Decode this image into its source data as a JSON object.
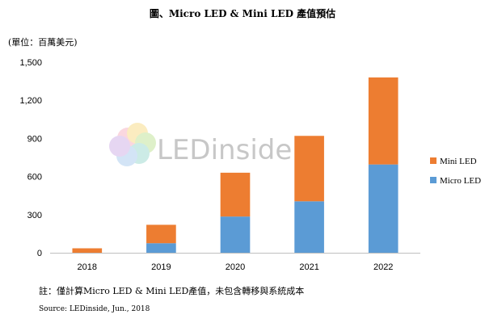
{
  "chart_data": {
    "type": "bar",
    "stacked": true,
    "title": "圖、Micro LED & Mini LED 產值預估",
    "ylabel": "(單位：百萬美元)",
    "xlabel": "",
    "categories": [
      "2018",
      "2019",
      "2020",
      "2021",
      "2022"
    ],
    "series": [
      {
        "name": "Micro LED",
        "color": "#5b9bd5",
        "values": [
          0,
          75,
          285,
          405,
          695
        ]
      },
      {
        "name": "Mini LED",
        "color": "#ed7d31",
        "values": [
          35,
          145,
          345,
          515,
          685
        ]
      }
    ],
    "ylim": [
      0,
      1500
    ],
    "yticks": [
      "0",
      "300",
      "600",
      "900",
      "1,200",
      "1,500"
    ],
    "grid": false,
    "legend_position": "right"
  },
  "watermark": {
    "text": "LEDinside"
  },
  "note": "註：僅計算Micro LED & Mini LED產值，未包含轉移與系統成本",
  "source": "Source: LEDinside, Jun., 2018"
}
